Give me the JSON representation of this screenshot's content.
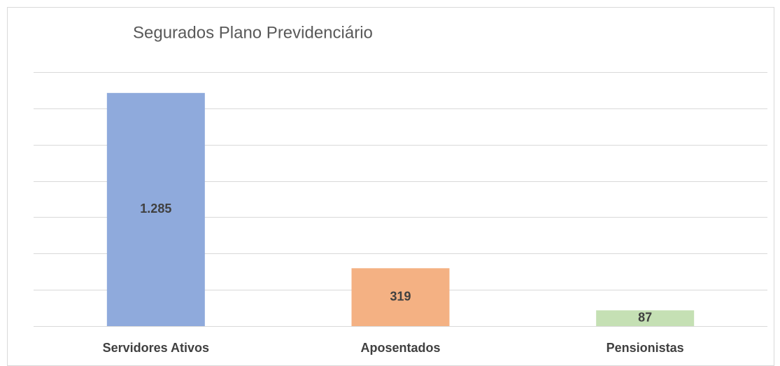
{
  "chart_data": {
    "type": "bar",
    "title": "Segurados Plano Previdenciário",
    "categories": [
      "Servidores Ativos",
      "Aposentados",
      "Pensionistas"
    ],
    "values": [
      1285,
      319,
      87
    ],
    "value_labels": [
      "1.285",
      "319",
      "87"
    ],
    "colors": [
      "#8faadc",
      "#f4b183",
      "#c5e0b4"
    ],
    "ylim": [
      0,
      1400
    ],
    "yticks": [
      0,
      200,
      400,
      600,
      800,
      1000,
      1200,
      1400
    ],
    "grid": true
  }
}
